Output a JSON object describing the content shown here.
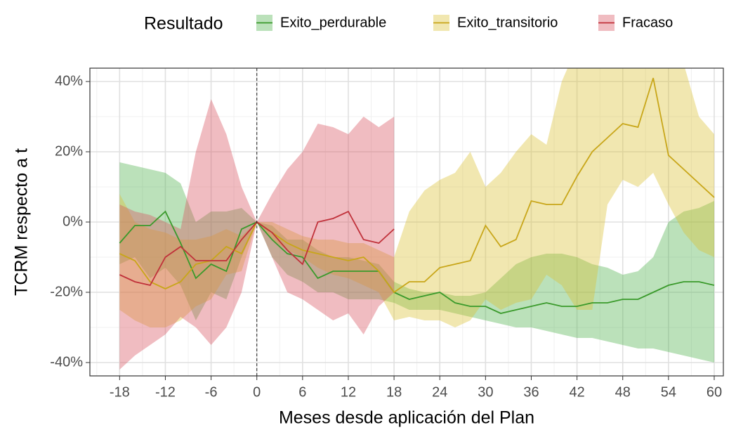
{
  "chart_data": {
    "type": "ribbon-line",
    "legend_title": "Resultado",
    "x_label": "Meses desde aplicación del Plan",
    "y_label": "TCRM respecto a t",
    "xlim": [
      -21.9,
      61.2
    ],
    "ylim": [
      -43.8,
      43.8
    ],
    "xticks": [
      -18,
      -12,
      -6,
      0,
      6,
      12,
      18,
      24,
      30,
      36,
      42,
      48,
      54,
      60
    ],
    "xminorticks": [
      -21,
      -15,
      -9,
      -3,
      3,
      9,
      15,
      21,
      27,
      33,
      39,
      45,
      51,
      57
    ],
    "yticks": [
      {
        "value": -40,
        "label": "-40%"
      },
      {
        "value": -20,
        "label": "-20%"
      },
      {
        "value": 0,
        "label": "0%"
      },
      {
        "value": 20,
        "label": "20%"
      },
      {
        "value": 40,
        "label": "40%"
      }
    ],
    "yminorticks": [
      -30,
      -10,
      10,
      30
    ],
    "grid": true,
    "vline": 0,
    "legend_position": "top",
    "series": [
      {
        "name": "Exito_perdurable",
        "color": "#3a9a2b",
        "fill": "#4daf4a",
        "x": [
          -18,
          -16,
          -14,
          -12,
          -10,
          -8,
          -6,
          -4,
          -2,
          0,
          2,
          4,
          6,
          8,
          10,
          12,
          14,
          16,
          18,
          20,
          22,
          24,
          26,
          28,
          30,
          32,
          34,
          36,
          38,
          40,
          42,
          44,
          46,
          48,
          50,
          52,
          54,
          56,
          58,
          60
        ],
        "values": [
          -6,
          -1,
          -1,
          3,
          -6,
          -16,
          -12,
          -14,
          -2,
          0,
          -5,
          -9,
          -10,
          -16,
          -14,
          -14,
          -14,
          -14,
          -20,
          -22,
          -21,
          -20,
          -23,
          -24,
          -24,
          -26,
          -25,
          -24,
          -23,
          -24,
          -24,
          -23,
          -23,
          -22,
          -22,
          -20,
          -18,
          -17,
          -17,
          -18
        ],
        "upper": [
          17,
          16,
          15,
          14,
          11,
          0,
          3,
          3,
          4,
          0,
          -1,
          -5,
          -5,
          -8,
          -10,
          -10,
          -11,
          -12,
          -17,
          -19,
          -20,
          -20,
          -21,
          -21,
          -20,
          -16,
          -12,
          -10,
          -9,
          -9,
          -10,
          -12,
          -13,
          -15,
          -14,
          -10,
          0,
          3,
          4,
          6
        ],
        "lower": [
          -12,
          -10,
          -16,
          -13,
          -18,
          -28,
          -20,
          -22,
          -10,
          0,
          -10,
          -15,
          -17,
          -20,
          -20,
          -22,
          -22,
          -22,
          -23,
          -25,
          -25,
          -25,
          -26,
          -27,
          -28,
          -29,
          -30,
          -30,
          -31,
          -32,
          -33,
          -33,
          -34,
          -35,
          -36,
          -36,
          -37,
          -38,
          -39,
          -40
        ]
      },
      {
        "name": "Exito_transitorio",
        "color": "#c8a619",
        "fill": "#d9c030",
        "x": [
          -18,
          -16,
          -14,
          -12,
          -10,
          -8,
          -6,
          -4,
          -2,
          0,
          2,
          4,
          6,
          8,
          10,
          12,
          14,
          16,
          18,
          20,
          22,
          24,
          26,
          28,
          30,
          32,
          34,
          36,
          38,
          40,
          42,
          44,
          46,
          48,
          50,
          52,
          54,
          56,
          58,
          60
        ],
        "values": [
          -9,
          -11,
          -17,
          -19,
          -17,
          -12,
          -11,
          -7,
          -9,
          0,
          -3,
          -6,
          -8,
          -9,
          -10,
          -11,
          -10,
          -14,
          -20,
          -17,
          -17,
          -13,
          -12,
          -11,
          -1,
          -7,
          -5,
          6,
          5,
          5,
          13,
          20,
          24,
          28,
          27,
          41,
          19,
          15,
          11,
          7
        ],
        "upper": [
          8,
          0,
          -2,
          -3,
          -5,
          -5,
          -4,
          -2,
          -4,
          0,
          0,
          -2,
          -4,
          -5,
          -5,
          -6,
          -6,
          -8,
          -10,
          3,
          9,
          12,
          14,
          20,
          10,
          14,
          20,
          25,
          22,
          40,
          50,
          60,
          60,
          48,
          60,
          60,
          60,
          45,
          30,
          25
        ],
        "lower": [
          -25,
          -28,
          -30,
          -30,
          -28,
          -24,
          -22,
          -15,
          -14,
          0,
          -5,
          -8,
          -10,
          -13,
          -15,
          -16,
          -18,
          -20,
          -28,
          -27,
          -28,
          -28,
          -30,
          -28,
          -22,
          -25,
          -23,
          -22,
          -15,
          -18,
          -25,
          -25,
          5,
          12,
          10,
          14,
          5,
          -3,
          -8,
          -10
        ]
      },
      {
        "name": "Fracaso",
        "color": "#c0313a",
        "fill": "#d7505d",
        "x": [
          -18,
          -16,
          -14,
          -12,
          -10,
          -8,
          -6,
          -4,
          -2,
          0,
          2,
          4,
          6,
          8,
          10,
          12,
          14,
          16,
          18
        ],
        "values": [
          -15,
          -17,
          -18,
          -10,
          -7,
          -11,
          -11,
          -11,
          -5,
          0,
          -3,
          -8,
          -12,
          0,
          1,
          3,
          -5,
          -6,
          -2
        ],
        "upper": [
          5,
          3,
          2,
          0,
          -2,
          20,
          35,
          25,
          10,
          0,
          8,
          15,
          20,
          28,
          27,
          25,
          30,
          27,
          30
        ],
        "lower": [
          -42,
          -38,
          -35,
          -32,
          -27,
          -30,
          -35,
          -30,
          -20,
          0,
          -10,
          -20,
          -22,
          -25,
          -28,
          -26,
          -32,
          -24,
          -20
        ]
      }
    ]
  }
}
